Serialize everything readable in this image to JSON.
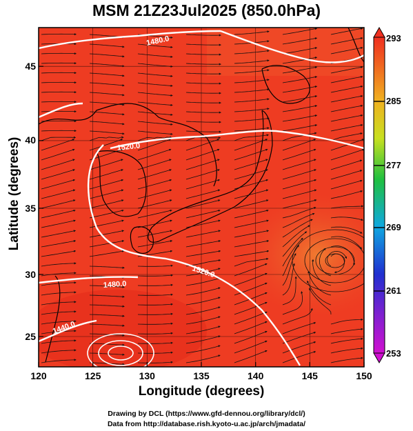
{
  "title": "MSM 21Z23Jul2025 (850.0hPa)",
  "axes": {
    "xlabel": "Longitude (degrees)",
    "ylabel": "Latitude  (degrees)",
    "xticks": [
      "120",
      "125",
      "130",
      "135",
      "140",
      "145",
      "150"
    ],
    "yticks": [
      "45",
      "40",
      "35",
      "30",
      "25"
    ],
    "xlim": [
      120,
      150
    ],
    "ylim": [
      22.6,
      47.8
    ]
  },
  "colorbar": {
    "ticks": [
      "293",
      "285",
      "277",
      "269",
      "261",
      "253"
    ],
    "range": [
      253,
      293
    ],
    "colors": [
      "#d010d0",
      "#2020d0",
      "#10a0e0",
      "#20c040",
      "#d0e020",
      "#f0a020",
      "#f03020"
    ]
  },
  "contours": {
    "labels": [
      "1480.0",
      "1520.0",
      "1520.0",
      "1480.0",
      "1440.0"
    ],
    "color": "#ffffff"
  },
  "footer": {
    "line1": "Drawing by DCL (https://www.gfd-dennou.org/library/dcl/)",
    "line2": "Data from http://database.rish.kyoto-u.ac.jp/arch/jmadata/"
  },
  "map_colors": {
    "background": "#ee3c22",
    "land": "#f04a2c",
    "south_warm": "#e8321c",
    "east_orange": "#ee6a2a"
  }
}
